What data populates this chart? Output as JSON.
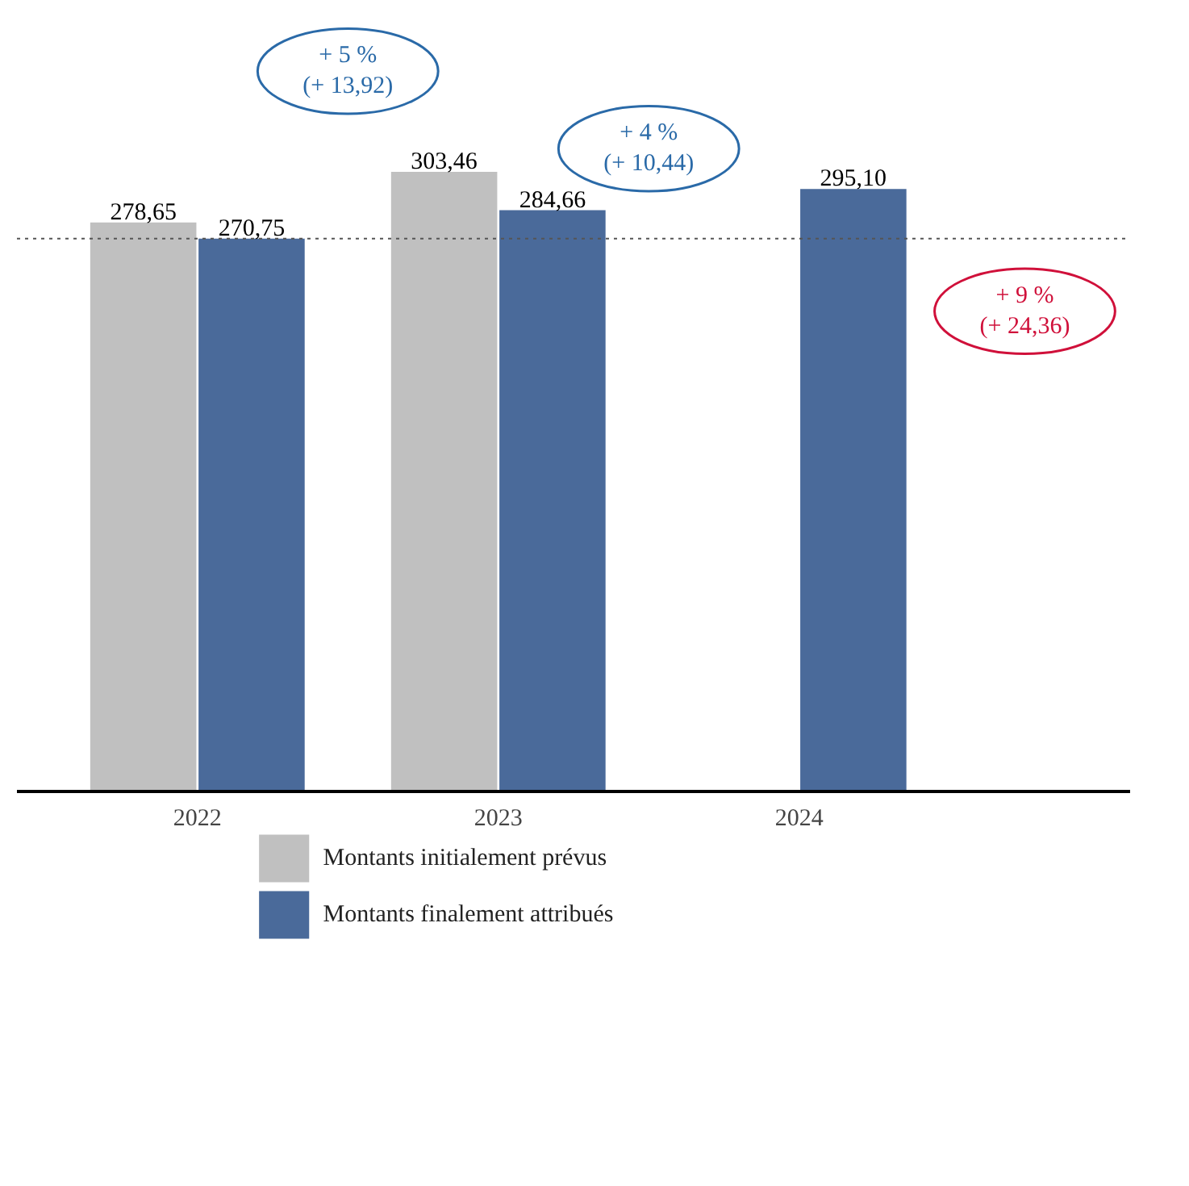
{
  "chart_data": {
    "type": "bar",
    "categories": [
      "2022",
      "2023",
      "2024"
    ],
    "series": [
      {
        "name": "Montants initialement prévus",
        "color": "#c0c0c0",
        "values": [
          278.65,
          303.46,
          null
        ],
        "value_labels": [
          "278,65",
          "303,46",
          null
        ]
      },
      {
        "name": "Montants finalement attribués",
        "color": "#4a6a9a",
        "values": [
          270.75,
          284.66,
          295.1
        ],
        "value_labels": [
          "270,75",
          "284,66",
          "295,10"
        ]
      }
    ],
    "annotations": [
      "+ 5 %\n(+ 13,92)",
      "+ 4 %\n(+ 10,44)",
      "+ 9 %\n(+ 24,36)"
    ],
    "ref_lines": [
      {
        "axis": "y",
        "value": 270.75,
        "line_style": "dotted",
        "color": "#555555"
      }
    ],
    "grid": false,
    "legend": "bottom"
  }
}
